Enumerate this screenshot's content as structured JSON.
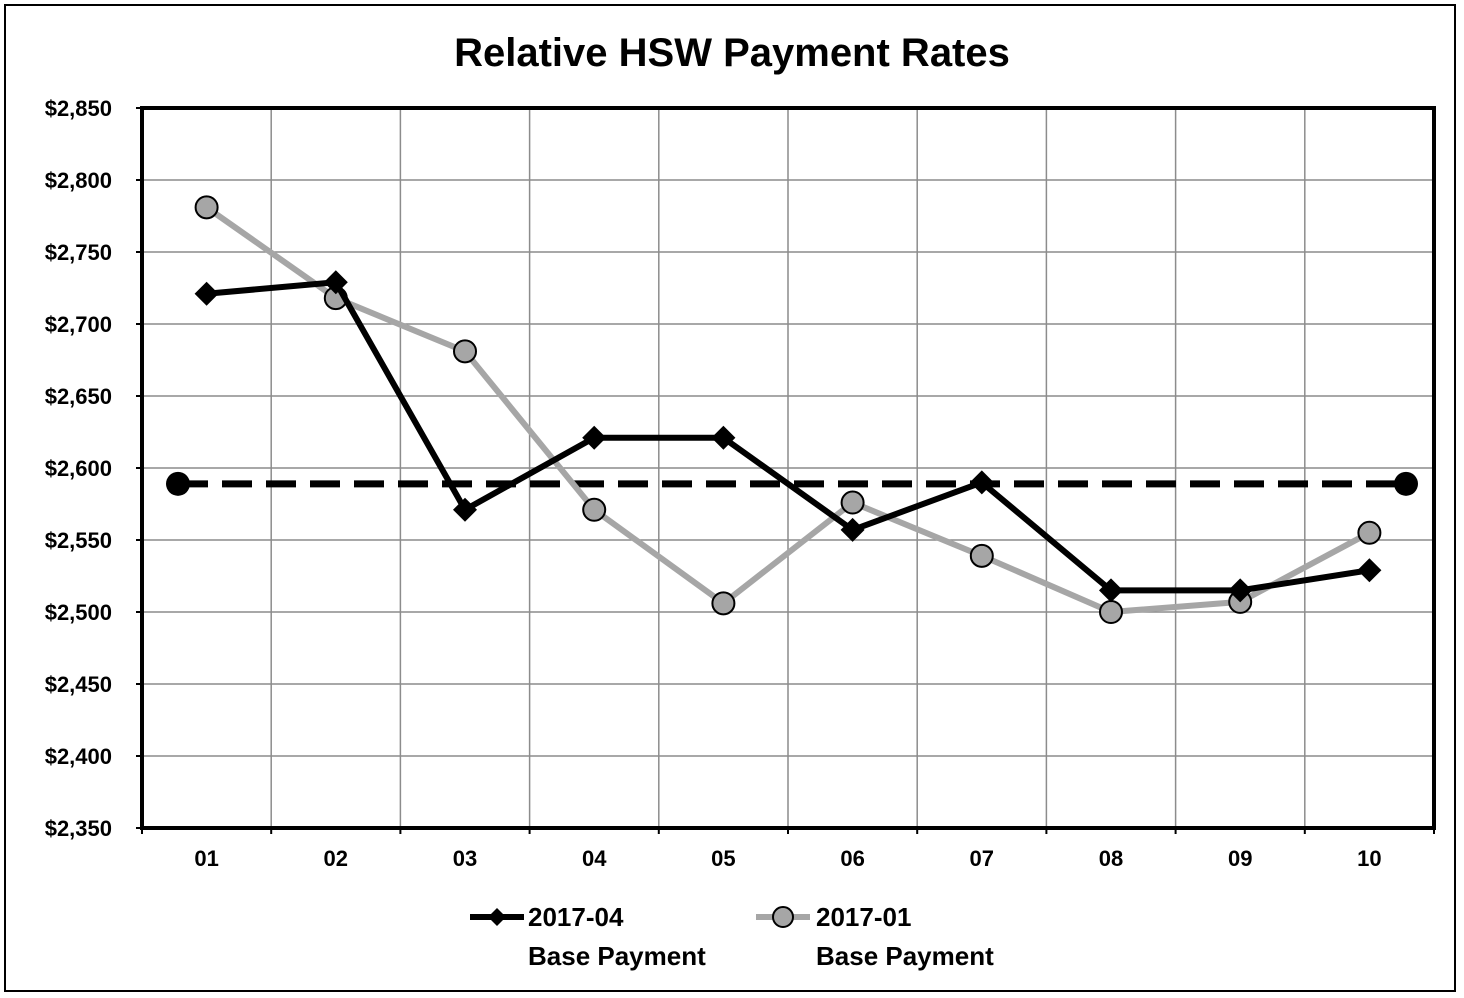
{
  "chart_data": {
    "type": "line",
    "title": "Relative HSW Payment Rates",
    "xlabel": "",
    "ylabel": "",
    "categories": [
      "01",
      "02",
      "03",
      "04",
      "05",
      "06",
      "07",
      "08",
      "09",
      "10"
    ],
    "ylim": [
      2350,
      2850
    ],
    "ystep": 50,
    "y_tick_labels": [
      "$2,350",
      "$2,400",
      "$2,450",
      "$2,500",
      "$2,550",
      "$2,600",
      "$2,650",
      "$2,700",
      "$2,750",
      "$2,800",
      "$2,850"
    ],
    "grid": true,
    "legend_position": "bottom",
    "series": [
      {
        "name": "2017-04",
        "name_line2": "Base Payment",
        "color": "#000000",
        "marker": "diamond",
        "values": [
          2721,
          2729,
          2571,
          2621,
          2621,
          2557,
          2590,
          2515,
          2515,
          2529
        ]
      },
      {
        "name": "2017-01",
        "name_line2": "Base Payment",
        "color": "#a6a6a6",
        "marker": "circle",
        "values": [
          2781,
          2718,
          2681,
          2571,
          2506,
          2576,
          2539,
          2500,
          2507,
          2555
        ]
      }
    ],
    "reference_line": {
      "value": 2589,
      "color": "#000000",
      "style": "dashed"
    }
  }
}
